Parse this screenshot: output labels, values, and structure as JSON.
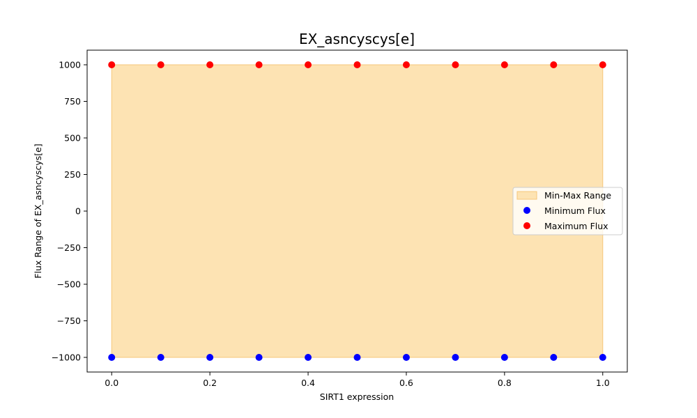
{
  "chart_data": {
    "type": "scatter",
    "title": "EX_asncyscys[e]",
    "xlabel": "SIRT1 expression",
    "ylabel": "Flux Range of EX_asncyscys[e]",
    "xlim": [
      -0.05,
      1.05
    ],
    "ylim": [
      -1100,
      1100
    ],
    "xticks": [
      0.0,
      0.2,
      0.4,
      0.6,
      0.8,
      1.0
    ],
    "xtick_labels": [
      "0.0",
      "0.2",
      "0.4",
      "0.6",
      "0.8",
      "1.0"
    ],
    "yticks": [
      -1000,
      -750,
      -500,
      -250,
      0,
      250,
      500,
      750,
      1000
    ],
    "ytick_labels": [
      "−1000",
      "−750",
      "−500",
      "−250",
      "0",
      "250",
      "500",
      "750",
      "1000"
    ],
    "grid": false,
    "legend_position": "center-right",
    "x": [
      0.0,
      0.1,
      0.2,
      0.3,
      0.4,
      0.5,
      0.6,
      0.7,
      0.8,
      0.9,
      1.0
    ],
    "range": {
      "name": "Min-Max Range",
      "color": "#fde3b3",
      "edge_color": "#f6c77a"
    },
    "series": [
      {
        "name": "Minimum Flux",
        "color": "#0000ff",
        "values": [
          -1000,
          -1000,
          -1000,
          -1000,
          -1000,
          -1000,
          -1000,
          -1000,
          -1000,
          -1000,
          -1000
        ]
      },
      {
        "name": "Maximum Flux",
        "color": "#ff0000",
        "values": [
          1000,
          1000,
          1000,
          1000,
          1000,
          1000,
          1000,
          1000,
          1000,
          1000,
          1000
        ]
      }
    ]
  }
}
